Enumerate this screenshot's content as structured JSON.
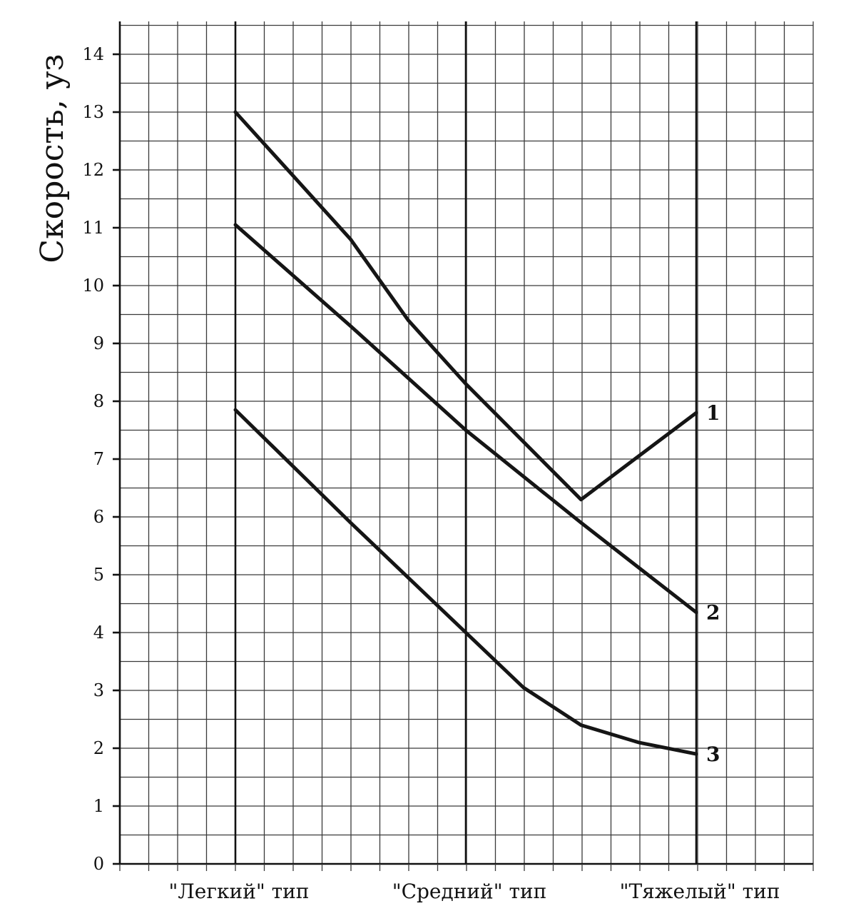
{
  "chart_data": {
    "type": "line",
    "ylabel": "Скорость, уз",
    "xlabel": "",
    "ylim": [
      0,
      14
    ],
    "yticks": [
      0,
      1,
      2,
      3,
      4,
      5,
      6,
      7,
      8,
      9,
      10,
      11,
      12,
      13,
      14
    ],
    "grid": true,
    "categories": [
      "\"Легкий\" тип",
      "\"Средний\" тип",
      "\"Тяжелый\" тип"
    ],
    "series": [
      {
        "name": "1",
        "points": [
          [
            0,
            13.0
          ],
          [
            0.25,
            11.9
          ],
          [
            0.5,
            10.8
          ],
          [
            0.75,
            9.4
          ],
          [
            1.0,
            8.3
          ],
          [
            1.5,
            6.3
          ],
          [
            2.0,
            7.8
          ]
        ]
      },
      {
        "name": "2",
        "points": [
          [
            0,
            11.05
          ],
          [
            0.5,
            9.3
          ],
          [
            1.0,
            7.5
          ],
          [
            1.5,
            5.9
          ],
          [
            2.0,
            4.35
          ]
        ]
      },
      {
        "name": "3",
        "points": [
          [
            0,
            7.85
          ],
          [
            0.5,
            5.9
          ],
          [
            1.0,
            4.0
          ],
          [
            1.25,
            3.05
          ],
          [
            1.5,
            2.4
          ],
          [
            1.75,
            2.1
          ],
          [
            2.0,
            1.9
          ]
        ]
      }
    ]
  }
}
